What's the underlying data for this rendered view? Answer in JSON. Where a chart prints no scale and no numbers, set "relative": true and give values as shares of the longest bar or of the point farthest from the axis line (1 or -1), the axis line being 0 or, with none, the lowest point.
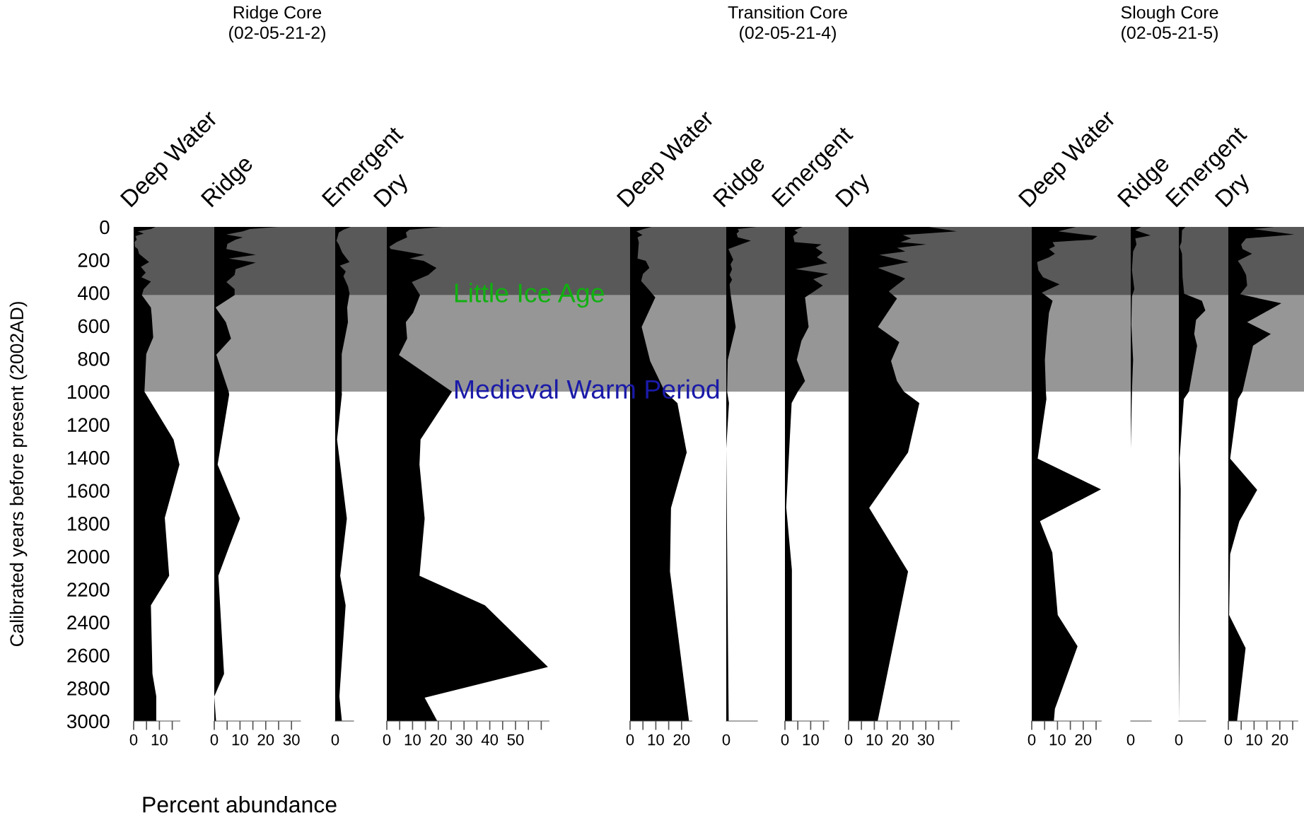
{
  "chart_data": [
    {
      "type": "other",
      "title": "Ridge Core\n(02-05-21-2)"
    },
    {
      "type": "area",
      "orientation": "horizontal",
      "title": "Deep Water",
      "ylabel": "Calibrated years before present (2002AD)",
      "xlabel": "Percent abundance",
      "color": "#000000",
      "x": [
        0,
        13,
        27,
        41,
        56,
        77,
        92,
        120,
        134,
        163,
        213,
        242,
        278,
        306,
        332,
        378,
        414,
        489,
        535,
        671,
        771,
        1000,
        1291,
        1443,
        1766,
        2118,
        2297,
        2714,
        2851,
        3000
      ],
      "values": [
        8.5,
        6.7,
        1.6,
        3.9,
        0.7,
        1.2,
        0.3,
        0.5,
        1.6,
        2.1,
        6.0,
        2.8,
        4.7,
        3.0,
        6.7,
        3.9,
        3.2,
        6.7,
        7.0,
        7.6,
        4.9,
        4.2,
        15.5,
        17.8,
        12.1,
        13.8,
        6.7,
        7.3,
        8.8,
        8.8
      ],
      "xlim": [
        0,
        18
      ],
      "xticks": [
        0,
        {
          "value": 5,
          "label": null
        },
        10,
        {
          "value": 15,
          "label": null
        }
      ],
      "ylim": [
        3000,
        0
      ],
      "yticks": [
        0,
        200,
        400,
        600,
        800,
        1000,
        1200,
        1400,
        1600,
        1800,
        2000,
        2200,
        2400,
        2600,
        2800,
        3000
      ],
      "bands": [
        {
          "axis": "y",
          "from": 0,
          "to": 415,
          "color": "#595959",
          "label": "Little Ice Age"
        },
        {
          "axis": "y",
          "from": 415,
          "to": 1000,
          "color": "#969696",
          "label": "Medieval Warm Period"
        }
      ]
    },
    {
      "type": "area",
      "orientation": "horizontal",
      "title": "Ridge",
      "color": "#000000",
      "tick_labels": "x",
      "x": [
        0,
        13,
        27,
        46,
        63,
        77,
        103,
        134,
        170,
        192,
        217,
        256,
        292,
        335,
        378,
        414,
        489,
        578,
        678,
        776,
        1000,
        1017,
        1443,
        1770,
        1945,
        2118,
        2714,
        2851,
        3000
      ],
      "values": [
        24.8,
        13.8,
        11.1,
        4.7,
        11.1,
        8.3,
        5.1,
        4.7,
        16.1,
        5.6,
        16.1,
        8.3,
        7.9,
        4.7,
        7.9,
        7.9,
        0.5,
        4.5,
        6.5,
        0.8,
        5.6,
        5.8,
        1.3,
        10.0,
        5.7,
        1.6,
        3.8,
        0,
        0.7
      ],
      "xlim": [
        0,
        33.5
      ],
      "xticks": [
        0,
        {
          "value": 5,
          "label": null
        },
        10,
        {
          "value": 15,
          "label": null
        },
        20,
        {
          "value": 25,
          "label": null
        },
        30
      ],
      "ylim": [
        3000,
        0
      ]
    },
    {
      "type": "area",
      "orientation": "horizontal",
      "title": "Emergent",
      "color": "#000000",
      "tick_labels": "x",
      "x": [
        0,
        17,
        34,
        63,
        84,
        106,
        156,
        185,
        213,
        235,
        270,
        299,
        363,
        406,
        489,
        578,
        771,
        1000,
        1017,
        1291,
        1770,
        2118,
        2297,
        2851,
        3000
      ],
      "values": [
        1,
        0.53,
        0.23,
        0.15,
        0.08,
        0.23,
        0.45,
        0.68,
        0.92,
        0.3,
        0.68,
        0.53,
        0.83,
        0.92,
        0.77,
        0.82,
        0.42,
        0.42,
        0.43,
        0.12,
        0.75,
        0.32,
        0.67,
        0.27,
        0.43
      ],
      "relative": true,
      "annotations": [
        {
          "text": "0",
          "y": 3000
        }
      ],
      "ylim": [
        3000,
        0
      ]
    },
    {
      "type": "area",
      "orientation": "horizontal",
      "title": "Dry",
      "color": "#000000",
      "tick_labels": "x",
      "x": [
        0,
        17,
        34,
        63,
        92,
        120,
        134,
        170,
        192,
        206,
        249,
        292,
        335,
        414,
        521,
        578,
        678,
        778,
        1000,
        1291,
        1443,
        1770,
        2118,
        2297,
        2672,
        2858,
        3000
      ],
      "values": [
        21.6,
        8.8,
        7.4,
        7.9,
        3.8,
        1.0,
        1.5,
        14.7,
        8.8,
        14.3,
        19.3,
        16.1,
        9.7,
        12.9,
        10.2,
        7.4,
        7.9,
        4.7,
        25.3,
        13.1,
        12.7,
        14.7,
        12.7,
        38.1,
        62.6,
        14.7,
        19.6
      ],
      "xlim": [
        0,
        63
      ],
      "xticks": [
        0,
        {
          "value": 5,
          "label": null
        },
        10,
        {
          "value": 15,
          "label": null
        },
        20,
        {
          "value": 25,
          "label": null
        },
        30,
        {
          "value": 35,
          "label": null
        },
        40,
        {
          "value": 45,
          "label": null
        },
        50,
        {
          "value": 55,
          "label": null
        },
        {
          "value": 60,
          "label": null
        }
      ],
      "ylim": [
        3000,
        0
      ]
    },
    {
      "type": "other",
      "title": "Transition Core\n(02-05-21-4)"
    },
    {
      "type": "area",
      "orientation": "horizontal",
      "title": "Deep Water",
      "color": "#000000",
      "tick_labels": "x",
      "x": [
        0,
        13,
        27,
        49,
        63,
        92,
        134,
        192,
        206,
        249,
        285,
        328,
        378,
        428,
        607,
        814,
        1000,
        1070,
        1369,
        1706,
        2092,
        3000
      ],
      "values": [
        8.4,
        5.2,
        2.5,
        4.8,
        2.9,
        3.4,
        3.2,
        2.9,
        6.1,
        7.5,
        5.0,
        4.3,
        7.1,
        9.8,
        4.5,
        7.8,
        13.5,
        18.4,
        22.0,
        15.9,
        15.5,
        22.9
      ],
      "xlim": [
        0,
        24
      ],
      "xticks": [
        0,
        {
          "value": 5,
          "label": null
        },
        10,
        {
          "value": 15,
          "label": null
        },
        20
      ],
      "ylim": [
        3000,
        0
      ]
    },
    {
      "type": "area",
      "orientation": "horizontal",
      "title": "Ridge",
      "color": "#000000",
      "tick_labels": "x",
      "x": [
        0,
        13,
        27,
        41,
        63,
        84,
        113,
        134,
        163,
        199,
        228,
        256,
        292,
        321,
        349,
        406,
        607,
        807,
        1000,
        1070,
        1345,
        3000
      ],
      "values": [
        1,
        0.38,
        0.42,
        0.34,
        0.38,
        0.81,
        0.38,
        0.07,
        0.14,
        0.23,
        0.14,
        0.19,
        0.11,
        0.19,
        0.11,
        0.14,
        0.31,
        0.05,
        0.03,
        0.09,
        0,
        0.08
      ],
      "relative": true,
      "annotations": [
        {
          "text": "0",
          "y": 3000
        }
      ],
      "ylim": [
        3000,
        0
      ]
    },
    {
      "type": "area",
      "orientation": "horizontal",
      "title": "Emergent",
      "color": "#000000",
      "tick_labels": "x",
      "x": [
        0,
        20,
        34,
        56,
        92,
        106,
        127,
        156,
        185,
        220,
        256,
        285,
        318,
        356,
        428,
        607,
        692,
        807,
        936,
        1000,
        1070,
        1702,
        2082,
        3000
      ],
      "values": [
        6.9,
        3.7,
        5.0,
        3.2,
        3.7,
        14.2,
        11.9,
        14.7,
        12.4,
        16.5,
        4.1,
        16.9,
        11.0,
        14.7,
        7.8,
        9.2,
        6.4,
        4.6,
        7.8,
        5.0,
        2.6,
        0.5,
        2.7,
        2.7
      ],
      "xlim": [
        0,
        17
      ],
      "xticks": [
        0,
        {
          "value": 5,
          "label": null
        },
        10,
        {
          "value": 15,
          "label": null
        }
      ],
      "ylim": [
        3000,
        0
      ]
    },
    {
      "type": "area",
      "orientation": "horizontal",
      "title": "Dry",
      "color": "#000000",
      "tick_labels": "x",
      "x": [
        0,
        27,
        49,
        70,
        92,
        106,
        127,
        149,
        170,
        213,
        249,
        313,
        392,
        435,
        607,
        700,
        814,
        936,
        1000,
        1070,
        1369,
        1706,
        2092,
        3000
      ],
      "values": [
        31.1,
        42,
        21.1,
        24.3,
        20.1,
        30.2,
        18.8,
        22.0,
        11.9,
        23.4,
        11.4,
        22.0,
        15.6,
        18.8,
        11.4,
        19.7,
        16.5,
        18.8,
        21.5,
        27.5,
        23.1,
        8.0,
        23.1,
        11.3
      ],
      "xlim": [
        0,
        43
      ],
      "xticks": [
        0,
        {
          "value": 5,
          "label": null
        },
        10,
        {
          "value": 15,
          "label": null
        },
        20,
        {
          "value": 25,
          "label": null
        },
        30,
        {
          "value": 35,
          "label": null
        },
        {
          "value": 40,
          "label": null
        }
      ],
      "ylim": [
        3000,
        0
      ]
    },
    {
      "type": "other",
      "title": "Slough Core\n(02-05-21-5)"
    },
    {
      "type": "area",
      "orientation": "horizontal",
      "title": "Deep Water",
      "color": "#000000",
      "tick_labels": "x",
      "x": [
        0,
        27,
        56,
        77,
        92,
        117,
        134,
        163,
        185,
        213,
        263,
        306,
        349,
        399,
        449,
        521,
        664,
        807,
        1000,
        1045,
        1407,
        1593,
        1787,
        1977,
        2356,
        2546,
        2926,
        3000
      ],
      "values": [
        17.2,
        10.3,
        25.5,
        23.6,
        8.1,
        9.0,
        6.7,
        9.0,
        6.7,
        2.1,
        2.6,
        4.4,
        10.8,
        3.9,
        8.1,
        6.7,
        5.8,
        5.1,
        5.5,
        5.7,
        2.3,
        26.9,
        3.2,
        8.0,
        10.1,
        17.8,
        9.0,
        8.6
      ],
      "xlim": [
        0,
        27
      ],
      "xticks": [
        0,
        {
          "value": 5,
          "label": null
        },
        10,
        {
          "value": 15,
          "label": null
        },
        20,
        {
          "value": 25,
          "label": null
        }
      ],
      "ylim": [
        3000,
        0
      ]
    },
    {
      "type": "area",
      "orientation": "horizontal",
      "title": "Ridge",
      "color": "#000000",
      "tick_labels": "x",
      "x": [
        0,
        20,
        52,
        70,
        106,
        149,
        206,
        263,
        378,
        421,
        592,
        807,
        1000,
        1345,
        3000
      ],
      "values": [
        0.53,
        0.23,
        1,
        0.23,
        0.29,
        0.12,
        0.09,
        0.06,
        0.18,
        0.06,
        0.03,
        0.12,
        0.06,
        0,
        0
      ],
      "relative": true,
      "annotations": [
        {
          "text": "0",
          "y": 3000
        }
      ],
      "ylim": [
        3000,
        0
      ]
    },
    {
      "type": "area",
      "orientation": "horizontal",
      "title": "Emergent",
      "color": "#000000",
      "tick_labels": "x",
      "x": [
        0,
        20,
        92,
        120,
        163,
        306,
        406,
        449,
        507,
        564,
        650,
        721,
        1000,
        1045,
        1407,
        1593,
        3000
      ],
      "values": [
        0.25,
        0.12,
        0.1,
        0.03,
        0.12,
        0.14,
        0.2,
        0.87,
        1,
        0.65,
        0.58,
        0.69,
        0.38,
        0.19,
        0.03,
        0.07,
        0
      ],
      "relative": true,
      "annotations": [
        {
          "text": "0",
          "y": 3000
        }
      ],
      "ylim": [
        3000,
        0
      ]
    },
    {
      "type": "area",
      "orientation": "horizontal",
      "title": "Dry",
      "color": "#000000",
      "tick_labels": "x",
      "x": [
        0,
        13,
        46,
        70,
        106,
        134,
        163,
        206,
        235,
        292,
        356,
        409,
        464,
        578,
        650,
        721,
        1000,
        1045,
        1407,
        1597,
        1787,
        1987,
        2356,
        2557,
        3000
      ],
      "values": [
        17.9,
        9.6,
        25.6,
        6.9,
        5.0,
        5.5,
        9.2,
        3.7,
        5.0,
        6.9,
        7.3,
        4.6,
        20.6,
        7.3,
        16.5,
        9.6,
        5.5,
        3.8,
        0.7,
        11.2,
        4.3,
        0.7,
        0.3,
        6.7,
        3.4
      ],
      "xlim": [
        0,
        27
      ],
      "xticks": [
        0,
        {
          "value": 5,
          "label": null
        },
        10,
        {
          "value": 15,
          "label": null
        },
        20,
        {
          "value": 25,
          "label": null
        }
      ],
      "ylim": [
        3000,
        0
      ]
    }
  ]
}
